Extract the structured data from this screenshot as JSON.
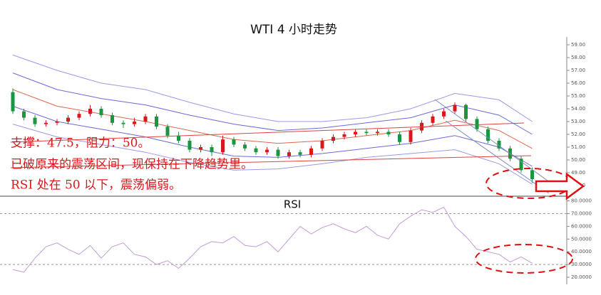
{
  "chart_data": [
    {
      "type": "candlestick",
      "title": "WTI 4 小时走势",
      "annotations": [
        "支撑：47.5，阻力：50。",
        "已破原来的震荡区间，现保持在下降趋势里。",
        "RSI 处在 50 以下，震荡偏弱。"
      ],
      "open": [
        55.3,
        53.8,
        53.3,
        52.8,
        52.9,
        53.0,
        53.3,
        53.6,
        54.0,
        53.5,
        52.9,
        52.8,
        53.0,
        53.4,
        52.6,
        51.9,
        51.5,
        50.8,
        51.0,
        50.6,
        51.6,
        51.2,
        50.9,
        50.6,
        50.8,
        50.3,
        50.6,
        50.4,
        50.9,
        51.5,
        51.8,
        52.0,
        52.2,
        52.1,
        52.2,
        52.0,
        51.4,
        52.3,
        52.9,
        53.4,
        53.8,
        54.3,
        53.2,
        52.4,
        51.5,
        50.9,
        50.1,
        49.2
      ],
      "close": [
        53.8,
        53.3,
        52.8,
        52.9,
        53.0,
        53.3,
        53.6,
        54.0,
        53.5,
        52.9,
        52.8,
        53.0,
        53.4,
        52.6,
        51.9,
        51.5,
        50.8,
        51.0,
        50.6,
        51.6,
        51.2,
        50.9,
        50.6,
        50.8,
        50.3,
        50.6,
        50.4,
        50.9,
        51.5,
        51.8,
        52.0,
        52.2,
        52.1,
        52.2,
        52.0,
        51.4,
        52.3,
        52.9,
        53.4,
        53.8,
        54.3,
        53.2,
        52.4,
        51.5,
        50.9,
        50.1,
        49.2,
        48.5
      ],
      "high": [
        55.6,
        54.0,
        53.5,
        53.1,
        53.2,
        53.5,
        53.8,
        54.3,
        54.2,
        53.7,
        53.1,
        53.3,
        53.6,
        53.6,
        52.8,
        52.2,
        51.7,
        51.2,
        51.2,
        51.9,
        51.8,
        51.4,
        51.1,
        51.0,
        51.0,
        50.8,
        50.8,
        51.1,
        51.7,
        52.0,
        52.2,
        52.4,
        52.4,
        52.4,
        52.4,
        52.2,
        52.5,
        53.1,
        53.6,
        54.0,
        54.5,
        54.4,
        53.4,
        52.6,
        51.7,
        51.1,
        50.3,
        49.4
      ],
      "low": [
        53.6,
        53.1,
        52.6,
        52.6,
        52.7,
        52.8,
        53.1,
        53.4,
        53.3,
        52.7,
        52.5,
        52.6,
        52.8,
        52.4,
        51.7,
        51.3,
        50.6,
        50.6,
        50.3,
        50.4,
        51.0,
        50.7,
        50.4,
        50.4,
        50.1,
        50.1,
        50.2,
        50.2,
        50.7,
        51.3,
        51.6,
        51.8,
        51.9,
        51.9,
        51.8,
        51.2,
        51.2,
        52.1,
        52.7,
        53.2,
        53.6,
        53.0,
        52.2,
        51.3,
        50.7,
        49.9,
        49.0,
        48.2
      ],
      "up_color": "#d7191c",
      "down_color": "#1a9641",
      "series": [
        {
          "color": "#9a9ae6",
          "x": [
            0,
            4,
            8,
            12,
            16,
            20,
            24,
            28,
            32,
            36,
            40,
            44,
            47
          ],
          "values": [
            58.2,
            57.0,
            56.0,
            55.5,
            54.5,
            53.6,
            53.0,
            53.0,
            53.3,
            54.0,
            55.2,
            54.7,
            53.0
          ]
        },
        {
          "color": "#6b6bd6",
          "x": [
            0,
            4,
            8,
            12,
            16,
            20,
            24,
            28,
            32,
            36,
            40,
            44,
            47
          ],
          "values": [
            56.8,
            55.5,
            54.8,
            54.3,
            53.5,
            52.8,
            52.3,
            52.5,
            52.9,
            53.3,
            54.3,
            53.5,
            52.0
          ]
        },
        {
          "color": "#e0664a",
          "x": [
            0,
            4,
            8,
            12,
            16,
            20,
            24,
            28,
            32,
            36,
            40,
            44,
            47
          ],
          "values": [
            55.5,
            54.2,
            53.6,
            53.0,
            52.3,
            51.6,
            51.3,
            51.5,
            51.9,
            52.3,
            53.1,
            52.3,
            50.9
          ]
        },
        {
          "color": "#6b6bd6",
          "x": [
            0,
            4,
            8,
            12,
            16,
            20,
            24,
            28,
            32,
            36,
            40,
            44,
            47
          ],
          "values": [
            54.2,
            53.0,
            52.4,
            51.8,
            51.0,
            50.3,
            50.2,
            50.5,
            50.9,
            51.3,
            51.9,
            51.0,
            49.5
          ]
        },
        {
          "color": "#9a9ae6",
          "x": [
            0,
            4,
            8,
            12,
            16,
            20,
            24,
            28,
            32,
            36,
            40,
            44,
            47
          ],
          "values": [
            52.8,
            51.8,
            51.2,
            50.6,
            49.8,
            49.2,
            49.3,
            49.7,
            50.2,
            50.5,
            50.8,
            49.7,
            48.1
          ]
        }
      ],
      "ylim": [
        47.2,
        59.6
      ],
      "yticks": [
        {
          "value": 59,
          "label": "59.00"
        },
        {
          "value": 58,
          "label": "58.00"
        },
        {
          "value": 57,
          "label": "57.00"
        },
        {
          "value": 56,
          "label": "56.00"
        },
        {
          "value": 55,
          "label": "55.00"
        },
        {
          "value": 54,
          "label": "54.00"
        },
        {
          "value": 53,
          "label": "53.00"
        },
        {
          "value": 52,
          "label": "52.00"
        },
        {
          "value": 51,
          "label": "51.00"
        },
        {
          "value": 50,
          "label": "50.00"
        },
        {
          "value": 49,
          "label": "49.00"
        },
        {
          "value": 48,
          "label": "48.00"
        }
      ]
    },
    {
      "type": "line",
      "title": "RSI",
      "color": "#c39bd3",
      "values": [
        26,
        24,
        35,
        44,
        47,
        42,
        38,
        45,
        35,
        44,
        47,
        38,
        36,
        30,
        33,
        27,
        35,
        44,
        48,
        47,
        52,
        45,
        44,
        48,
        40,
        50,
        60,
        54,
        59,
        62,
        58,
        55,
        60,
        53,
        50,
        62,
        68,
        73,
        71,
        75,
        60,
        52,
        42,
        40,
        38,
        32,
        36,
        31
      ],
      "hlines": [
        70,
        30
      ],
      "ylim": [
        15,
        82
      ],
      "yticks": [
        {
          "value": 80,
          "label": "80.0000"
        },
        {
          "value": 70,
          "label": "70.0000"
        },
        {
          "value": 60,
          "label": "60.0000"
        },
        {
          "value": 50,
          "label": "50.0000"
        },
        {
          "value": 40,
          "label": "40.0000"
        },
        {
          "value": 30,
          "label": "30.0000"
        },
        {
          "value": 20,
          "label": "20.0000"
        }
      ]
    }
  ]
}
